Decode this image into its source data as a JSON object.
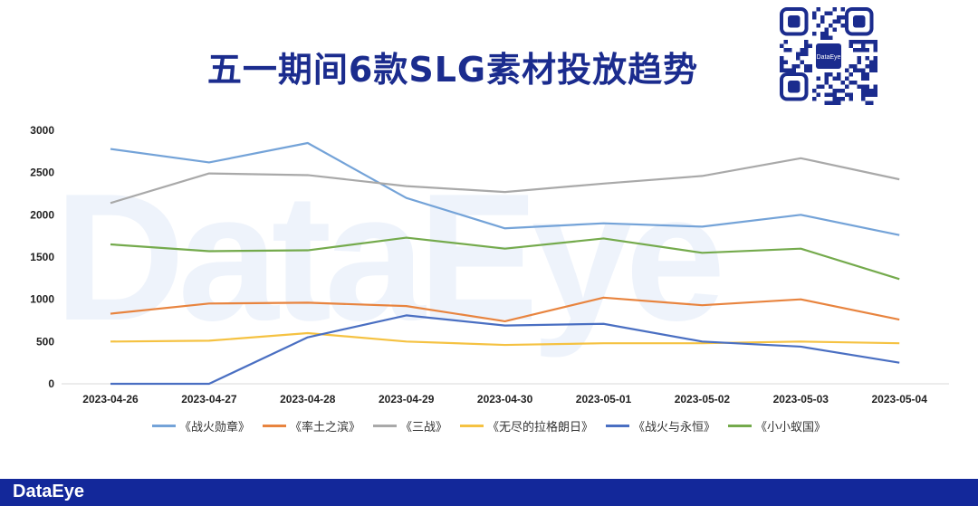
{
  "title": "五一期间6款SLG素材投放趋势",
  "footer_logo": "DataEye",
  "watermark": "DataEye",
  "qr_label": "DataEye",
  "chart_data": {
    "type": "line",
    "title": "五一期间6款SLG素材投放趋势",
    "xlabel": "",
    "ylabel": "",
    "ylim": [
      0,
      3000
    ],
    "yticks": [
      0,
      500,
      1000,
      1500,
      2000,
      2500,
      3000
    ],
    "grid": false,
    "legend_position": "bottom",
    "categories": [
      "2023-04-26",
      "2023-04-27",
      "2023-04-28",
      "2023-04-29",
      "2023-04-30",
      "2023-05-01",
      "2023-05-02",
      "2023-05-03",
      "2023-05-04"
    ],
    "series": [
      {
        "name": "《战火勋章》",
        "color": "#74a3d8",
        "values": [
          2780,
          2620,
          2850,
          2200,
          1840,
          1900,
          1860,
          2000,
          1760
        ]
      },
      {
        "name": "《率土之滨》",
        "color": "#e8843f",
        "values": [
          830,
          950,
          960,
          920,
          740,
          1020,
          930,
          1000,
          760
        ]
      },
      {
        "name": "《三战》",
        "color": "#a9a9a9",
        "values": [
          2140,
          2490,
          2470,
          2340,
          2270,
          2370,
          2460,
          2670,
          2420
        ]
      },
      {
        "name": "《无尽的拉格朗日》",
        "color": "#f5c242",
        "values": [
          500,
          510,
          600,
          500,
          460,
          480,
          480,
          500,
          480
        ]
      },
      {
        "name": "《战火与永恒》",
        "color": "#4a6fc2",
        "values": [
          0,
          0,
          550,
          810,
          690,
          710,
          500,
          440,
          250
        ]
      },
      {
        "name": "《小小蚁国》",
        "color": "#74aa4c",
        "values": [
          1650,
          1570,
          1580,
          1730,
          1600,
          1720,
          1550,
          1600,
          1240
        ]
      }
    ]
  }
}
